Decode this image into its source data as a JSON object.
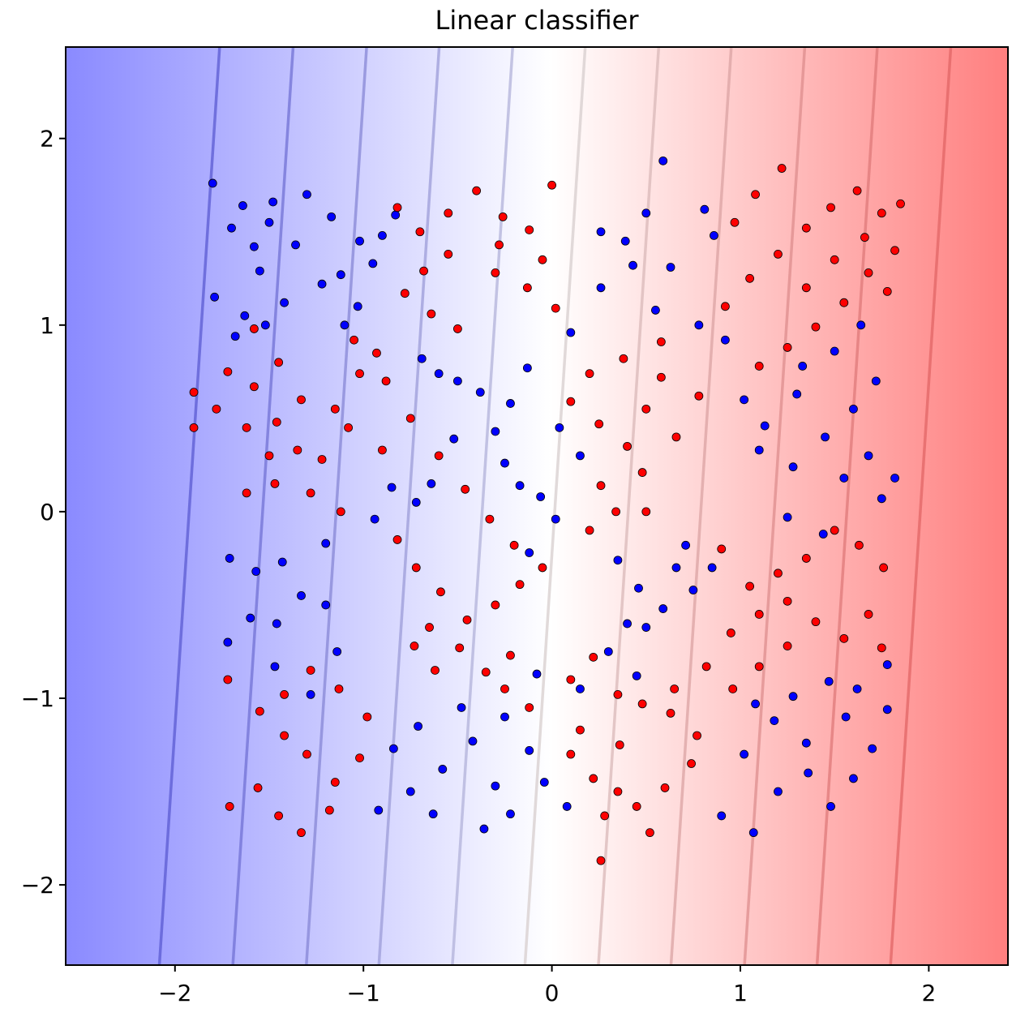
{
  "chart_data": {
    "type": "scatter",
    "title": "Linear classifier",
    "xlabel": "",
    "ylabel": "",
    "xlim": [
      -2.58,
      2.42
    ],
    "ylim": [
      -2.43,
      2.49
    ],
    "grid": false,
    "legend": "none",
    "x_ticks": [
      {
        "value": -2,
        "label": "−2"
      },
      {
        "value": -1,
        "label": "−1"
      },
      {
        "value": 0,
        "label": "0"
      },
      {
        "value": 1,
        "label": "1"
      },
      {
        "value": 2,
        "label": "2"
      }
    ],
    "y_ticks": [
      {
        "value": 2,
        "label": "2"
      },
      {
        "value": 1,
        "label": "1"
      },
      {
        "value": 0,
        "label": "0"
      },
      {
        "value": -1,
        "label": "−1"
      },
      {
        "value": -2,
        "label": "−2"
      }
    ],
    "background": {
      "kind": "decision-function-gradient",
      "direction": "left-to-right",
      "colors": {
        "negative": "#8a8aff",
        "zero": "#ffffff",
        "positive": "#ff7f7f"
      },
      "boundary_slope_dx_per_dy": 0.065,
      "contour_levels_x_at_y0": [
        -1.925,
        -1.535,
        -1.145,
        -0.76,
        -0.37,
        0.015,
        0.405,
        0.79,
        1.18,
        1.565,
        1.955
      ]
    },
    "series": [
      {
        "color": "#0000ff",
        "pattern": "checkerboard",
        "cell_size": 0.38,
        "x_range": [
          -1.9,
          1.85
        ],
        "y_range": [
          -1.8,
          1.9
        ],
        "points": [
          [
            -1.64,
            1.64
          ],
          [
            -1.5,
            1.55
          ],
          [
            -1.3,
            1.7
          ],
          [
            -1.17,
            1.58
          ],
          [
            -1.02,
            1.45
          ],
          [
            -1.55,
            1.29
          ],
          [
            -1.42,
            1.12
          ],
          [
            -1.63,
            1.05
          ],
          [
            -1.12,
            1.27
          ],
          [
            -1.03,
            1.1
          ],
          [
            -0.69,
            0.82
          ],
          [
            -0.6,
            0.74
          ],
          [
            -0.5,
            0.7
          ],
          [
            -0.38,
            0.64
          ],
          [
            -0.22,
            0.58
          ],
          [
            -0.13,
            0.77
          ],
          [
            -0.3,
            0.43
          ],
          [
            -0.52,
            0.39
          ],
          [
            -0.64,
            0.15
          ],
          [
            -0.85,
            0.13
          ],
          [
            -0.72,
            0.05
          ],
          [
            -0.94,
            -0.04
          ],
          [
            -1.71,
            -0.25
          ],
          [
            -1.57,
            -0.32
          ],
          [
            -1.43,
            -0.27
          ],
          [
            -1.2,
            -0.17
          ],
          [
            -1.33,
            -0.45
          ],
          [
            -1.6,
            -0.57
          ],
          [
            -1.46,
            -0.6
          ],
          [
            -1.2,
            -0.5
          ],
          [
            -0.25,
            0.26
          ],
          [
            -0.17,
            0.14
          ],
          [
            0.04,
            0.45
          ],
          [
            0.15,
            0.3
          ],
          [
            -0.06,
            0.08
          ],
          [
            0.02,
            -0.04
          ],
          [
            -0.12,
            -0.22
          ],
          [
            0.35,
            -0.26
          ],
          [
            0.46,
            -0.41
          ],
          [
            0.59,
            -0.52
          ],
          [
            0.4,
            -0.6
          ],
          [
            0.66,
            -0.3
          ],
          [
            0.71,
            -0.18
          ],
          [
            0.1,
            0.96
          ],
          [
            0.26,
            1.2
          ],
          [
            0.39,
            1.45
          ],
          [
            0.5,
            1.6
          ],
          [
            0.63,
            1.31
          ],
          [
            0.55,
            1.08
          ],
          [
            0.78,
            1.0
          ],
          [
            0.86,
            1.48
          ],
          [
            0.81,
            1.62
          ],
          [
            0.59,
            1.88
          ],
          [
            0.43,
            1.32
          ],
          [
            0.26,
            1.5
          ],
          [
            0.92,
            0.92
          ],
          [
            1.02,
            0.6
          ],
          [
            1.13,
            0.46
          ],
          [
            1.3,
            0.63
          ],
          [
            1.45,
            0.4
          ],
          [
            1.6,
            0.55
          ],
          [
            1.72,
            0.7
          ],
          [
            1.68,
            0.3
          ],
          [
            1.55,
            0.18
          ],
          [
            1.28,
            0.24
          ],
          [
            1.1,
            0.33
          ],
          [
            1.64,
            1.0
          ],
          [
            1.5,
            0.86
          ],
          [
            1.33,
            0.78
          ],
          [
            -1.72,
            -0.7
          ],
          [
            -1.47,
            -0.83
          ],
          [
            -1.28,
            -0.98
          ],
          [
            -1.14,
            -0.75
          ],
          [
            -0.71,
            -1.15
          ],
          [
            -0.84,
            -1.27
          ],
          [
            -0.58,
            -1.38
          ],
          [
            -0.42,
            -1.23
          ],
          [
            -0.3,
            -1.47
          ],
          [
            -0.22,
            -1.62
          ],
          [
            -0.36,
            -1.7
          ],
          [
            -0.63,
            -1.62
          ],
          [
            -0.75,
            -1.5
          ],
          [
            -0.92,
            -1.6
          ],
          [
            -0.48,
            -1.05
          ],
          [
            -0.25,
            -1.1
          ],
          [
            -0.12,
            -1.28
          ],
          [
            -0.04,
            -1.45
          ],
          [
            0.08,
            -1.58
          ],
          [
            -0.08,
            -0.87
          ],
          [
            0.15,
            -0.95
          ],
          [
            0.3,
            -0.75
          ],
          [
            0.45,
            -0.88
          ],
          [
            0.5,
            -0.62
          ],
          [
            0.75,
            -0.42
          ],
          [
            0.85,
            -0.3
          ],
          [
            0.9,
            -1.63
          ],
          [
            1.07,
            -1.72
          ],
          [
            1.2,
            -1.5
          ],
          [
            1.36,
            -1.4
          ],
          [
            1.48,
            -1.58
          ],
          [
            1.6,
            -1.43
          ],
          [
            1.7,
            -1.27
          ],
          [
            1.78,
            -1.06
          ],
          [
            1.56,
            -1.1
          ],
          [
            1.35,
            -1.24
          ],
          [
            1.18,
            -1.12
          ],
          [
            1.02,
            -1.3
          ],
          [
            1.08,
            -1.03
          ],
          [
            1.28,
            -0.99
          ],
          [
            1.47,
            -0.91
          ],
          [
            1.62,
            -0.95
          ],
          [
            1.78,
            -0.82
          ],
          [
            1.75,
            0.07
          ],
          [
            1.82,
            0.18
          ],
          [
            1.44,
            -0.12
          ],
          [
            1.25,
            -0.03
          ],
          [
            -1.8,
            1.76
          ],
          [
            -1.7,
            1.52
          ],
          [
            -1.48,
            1.66
          ],
          [
            -1.36,
            1.43
          ],
          [
            -1.22,
            1.22
          ],
          [
            -1.1,
            1.0
          ],
          [
            -0.9,
            1.48
          ],
          [
            -0.83,
            1.59
          ],
          [
            -0.95,
            1.33
          ],
          [
            -1.58,
            1.42
          ],
          [
            -1.79,
            1.15
          ],
          [
            -1.68,
            0.94
          ],
          [
            -1.52,
            1.0
          ]
        ]
      },
      {
        "color": "#ff0000",
        "pattern": "checkerboard",
        "cell_size": 0.38,
        "x_range": [
          -1.95,
          1.85
        ],
        "y_range": [
          -1.87,
          1.84
        ],
        "points": [
          [
            -0.82,
            1.63
          ],
          [
            -0.7,
            1.5
          ],
          [
            -0.55,
            1.6
          ],
          [
            -0.4,
            1.72
          ],
          [
            -0.28,
            1.43
          ],
          [
            -0.55,
            1.38
          ],
          [
            -0.68,
            1.29
          ],
          [
            -0.78,
            1.17
          ],
          [
            -0.64,
            1.06
          ],
          [
            -0.5,
            0.98
          ],
          [
            -0.26,
            1.58
          ],
          [
            -0.12,
            1.51
          ],
          [
            0.0,
            1.75
          ],
          [
            -0.05,
            1.35
          ],
          [
            -0.13,
            1.2
          ],
          [
            0.02,
            1.09
          ],
          [
            -0.3,
            1.28
          ],
          [
            -1.58,
            0.98
          ],
          [
            -1.72,
            0.75
          ],
          [
            -1.58,
            0.67
          ],
          [
            -1.45,
            0.8
          ],
          [
            -1.33,
            0.6
          ],
          [
            -1.46,
            0.48
          ],
          [
            -1.62,
            0.45
          ],
          [
            -1.78,
            0.55
          ],
          [
            -1.9,
            0.64
          ],
          [
            -1.5,
            0.3
          ],
          [
            -1.35,
            0.33
          ],
          [
            -1.22,
            0.28
          ],
          [
            -1.15,
            0.55
          ],
          [
            -1.02,
            0.74
          ],
          [
            -0.88,
            0.7
          ],
          [
            -1.08,
            0.45
          ],
          [
            -0.9,
            0.33
          ],
          [
            -1.62,
            0.1
          ],
          [
            -1.47,
            0.15
          ],
          [
            -1.28,
            0.1
          ],
          [
            -1.12,
            0.0
          ],
          [
            0.1,
            0.59
          ],
          [
            0.25,
            0.47
          ],
          [
            0.4,
            0.35
          ],
          [
            0.5,
            0.55
          ],
          [
            0.66,
            0.4
          ],
          [
            0.48,
            0.21
          ],
          [
            0.26,
            0.14
          ],
          [
            0.34,
            0.0
          ],
          [
            0.5,
            0.0
          ],
          [
            0.2,
            -0.1
          ],
          [
            0.58,
            0.72
          ],
          [
            0.78,
            0.62
          ],
          [
            0.58,
            0.91
          ],
          [
            0.38,
            0.82
          ],
          [
            0.2,
            0.74
          ],
          [
            -0.05,
            -0.3
          ],
          [
            -0.17,
            -0.39
          ],
          [
            -0.3,
            -0.5
          ],
          [
            -0.45,
            -0.58
          ],
          [
            -0.59,
            -0.43
          ],
          [
            -0.72,
            -0.3
          ],
          [
            -0.82,
            -0.15
          ],
          [
            -0.65,
            -0.62
          ],
          [
            -0.49,
            -0.73
          ],
          [
            -0.35,
            -0.86
          ],
          [
            -0.22,
            -0.77
          ],
          [
            -0.62,
            -0.85
          ],
          [
            -0.73,
            -0.72
          ],
          [
            -1.72,
            -0.9
          ],
          [
            -1.55,
            -1.07
          ],
          [
            -1.42,
            -1.2
          ],
          [
            -1.3,
            -1.3
          ],
          [
            -1.15,
            -1.45
          ],
          [
            -1.02,
            -1.32
          ],
          [
            -1.56,
            -1.48
          ],
          [
            -1.71,
            -1.58
          ],
          [
            -1.45,
            -1.63
          ],
          [
            -1.33,
            -1.72
          ],
          [
            -1.18,
            -1.6
          ],
          [
            -0.98,
            -1.1
          ],
          [
            -1.13,
            -0.95
          ],
          [
            -1.28,
            -0.85
          ],
          [
            -1.42,
            -0.98
          ],
          [
            0.1,
            -1.3
          ],
          [
            0.22,
            -1.43
          ],
          [
            0.35,
            -1.5
          ],
          [
            0.28,
            -1.63
          ],
          [
            0.45,
            -1.58
          ],
          [
            0.52,
            -1.72
          ],
          [
            0.6,
            -1.48
          ],
          [
            0.74,
            -1.35
          ],
          [
            0.77,
            -1.2
          ],
          [
            0.63,
            -1.08
          ],
          [
            0.48,
            -1.03
          ],
          [
            0.36,
            -1.25
          ],
          [
            0.15,
            -1.17
          ],
          [
            0.26,
            -1.87
          ],
          [
            0.1,
            -0.9
          ],
          [
            0.22,
            -0.78
          ],
          [
            0.35,
            -0.98
          ],
          [
            0.95,
            -0.65
          ],
          [
            1.1,
            -0.55
          ],
          [
            1.25,
            -0.48
          ],
          [
            1.4,
            -0.59
          ],
          [
            1.55,
            -0.68
          ],
          [
            1.68,
            -0.55
          ],
          [
            1.76,
            -0.3
          ],
          [
            1.63,
            -0.18
          ],
          [
            1.5,
            -0.1
          ],
          [
            1.35,
            -0.25
          ],
          [
            1.2,
            -0.33
          ],
          [
            1.05,
            -0.4
          ],
          [
            0.9,
            -0.2
          ],
          [
            1.75,
            -0.73
          ],
          [
            0.92,
            1.1
          ],
          [
            1.05,
            1.25
          ],
          [
            1.2,
            1.38
          ],
          [
            1.35,
            1.52
          ],
          [
            1.48,
            1.63
          ],
          [
            1.62,
            1.72
          ],
          [
            1.75,
            1.6
          ],
          [
            1.82,
            1.4
          ],
          [
            1.68,
            1.28
          ],
          [
            1.55,
            1.12
          ],
          [
            1.4,
            0.99
          ],
          [
            1.25,
            0.88
          ],
          [
            1.1,
            0.78
          ],
          [
            0.97,
            1.55
          ],
          [
            1.08,
            1.7
          ],
          [
            1.22,
            1.84
          ],
          [
            1.35,
            1.2
          ],
          [
            1.5,
            1.35
          ],
          [
            1.66,
            1.47
          ],
          [
            1.78,
            1.18
          ],
          [
            1.85,
            1.65
          ],
          [
            -1.9,
            0.45
          ],
          [
            -1.05,
            0.92
          ],
          [
            -0.93,
            0.85
          ],
          [
            -0.75,
            0.5
          ],
          [
            -0.6,
            0.3
          ],
          [
            -0.46,
            0.12
          ],
          [
            -0.33,
            -0.04
          ],
          [
            -0.2,
            -0.18
          ],
          [
            0.65,
            -0.95
          ],
          [
            0.82,
            -0.83
          ],
          [
            0.96,
            -0.95
          ],
          [
            1.1,
            -0.83
          ],
          [
            1.25,
            -0.72
          ],
          [
            -0.12,
            -1.05
          ],
          [
            -0.25,
            -0.95
          ]
        ]
      }
    ]
  }
}
